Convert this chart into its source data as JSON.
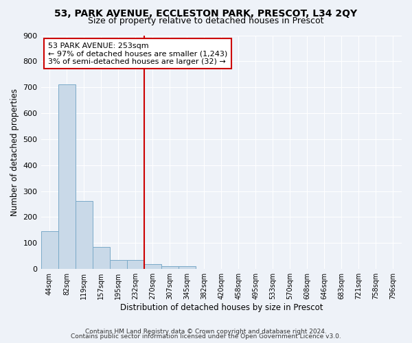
{
  "title1": "53, PARK AVENUE, ECCLESTON PARK, PRESCOT, L34 2QY",
  "title2": "Size of property relative to detached houses in Prescot",
  "xlabel": "Distribution of detached houses by size in Prescot",
  "ylabel": "Number of detached properties",
  "categories": [
    "44sqm",
    "82sqm",
    "119sqm",
    "157sqm",
    "195sqm",
    "232sqm",
    "270sqm",
    "307sqm",
    "345sqm",
    "382sqm",
    "420sqm",
    "458sqm",
    "495sqm",
    "533sqm",
    "570sqm",
    "608sqm",
    "646sqm",
    "683sqm",
    "721sqm",
    "758sqm",
    "796sqm"
  ],
  "values": [
    145,
    710,
    263,
    85,
    35,
    35,
    20,
    10,
    10,
    0,
    0,
    0,
    0,
    0,
    0,
    0,
    0,
    0,
    0,
    0,
    0
  ],
  "bar_color": "#c9d9e8",
  "bar_edge_color": "#7aaac8",
  "vline_x": 5.5,
  "vline_color": "#cc0000",
  "annotation_text": "53 PARK AVENUE: 253sqm\n← 97% of detached houses are smaller (1,243)\n3% of semi-detached houses are larger (32) →",
  "annotation_box_color": "#ffffff",
  "annotation_box_edge": "#cc0000",
  "ylim": [
    0,
    900
  ],
  "yticks": [
    0,
    100,
    200,
    300,
    400,
    500,
    600,
    700,
    800,
    900
  ],
  "footer1": "Contains HM Land Registry data © Crown copyright and database right 2024.",
  "footer2": "Contains public sector information licensed under the Open Government Licence v3.0.",
  "bg_color": "#eef2f8",
  "grid_color": "#ffffff",
  "title1_fontsize": 10,
  "title2_fontsize": 9,
  "xlabel_fontsize": 8.5,
  "ylabel_fontsize": 8.5
}
